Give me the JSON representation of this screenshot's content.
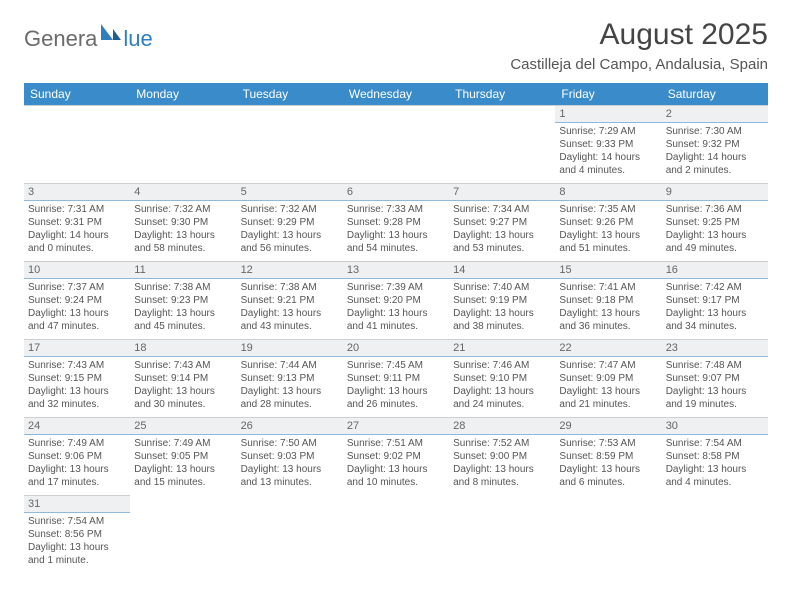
{
  "logo": {
    "text_left": "Genera",
    "text_right": "lue",
    "mark_color": "#2f7ec0",
    "gray_color": "#6b6b6b"
  },
  "header": {
    "month_title": "August 2025",
    "location": "Castilleja del Campo, Andalusia, Spain"
  },
  "colors": {
    "header_bg": "#3a8bc9",
    "header_text": "#ffffff",
    "daynum_bg": "#eef0f2",
    "daynum_border": "#8fb9da",
    "cell_border": "#cfcfcf"
  },
  "days_of_week": [
    "Sunday",
    "Monday",
    "Tuesday",
    "Wednesday",
    "Thursday",
    "Friday",
    "Saturday"
  ],
  "cells": [
    [
      {
        "empty": true
      },
      {
        "empty": true
      },
      {
        "empty": true
      },
      {
        "empty": true
      },
      {
        "empty": true
      },
      {
        "num": "1",
        "sunrise": "Sunrise: 7:29 AM",
        "sunset": "Sunset: 9:33 PM",
        "day1": "Daylight: 14 hours",
        "day2": "and 4 minutes."
      },
      {
        "num": "2",
        "sunrise": "Sunrise: 7:30 AM",
        "sunset": "Sunset: 9:32 PM",
        "day1": "Daylight: 14 hours",
        "day2": "and 2 minutes."
      }
    ],
    [
      {
        "num": "3",
        "sunrise": "Sunrise: 7:31 AM",
        "sunset": "Sunset: 9:31 PM",
        "day1": "Daylight: 14 hours",
        "day2": "and 0 minutes."
      },
      {
        "num": "4",
        "sunrise": "Sunrise: 7:32 AM",
        "sunset": "Sunset: 9:30 PM",
        "day1": "Daylight: 13 hours",
        "day2": "and 58 minutes."
      },
      {
        "num": "5",
        "sunrise": "Sunrise: 7:32 AM",
        "sunset": "Sunset: 9:29 PM",
        "day1": "Daylight: 13 hours",
        "day2": "and 56 minutes."
      },
      {
        "num": "6",
        "sunrise": "Sunrise: 7:33 AM",
        "sunset": "Sunset: 9:28 PM",
        "day1": "Daylight: 13 hours",
        "day2": "and 54 minutes."
      },
      {
        "num": "7",
        "sunrise": "Sunrise: 7:34 AM",
        "sunset": "Sunset: 9:27 PM",
        "day1": "Daylight: 13 hours",
        "day2": "and 53 minutes."
      },
      {
        "num": "8",
        "sunrise": "Sunrise: 7:35 AM",
        "sunset": "Sunset: 9:26 PM",
        "day1": "Daylight: 13 hours",
        "day2": "and 51 minutes."
      },
      {
        "num": "9",
        "sunrise": "Sunrise: 7:36 AM",
        "sunset": "Sunset: 9:25 PM",
        "day1": "Daylight: 13 hours",
        "day2": "and 49 minutes."
      }
    ],
    [
      {
        "num": "10",
        "sunrise": "Sunrise: 7:37 AM",
        "sunset": "Sunset: 9:24 PM",
        "day1": "Daylight: 13 hours",
        "day2": "and 47 minutes."
      },
      {
        "num": "11",
        "sunrise": "Sunrise: 7:38 AM",
        "sunset": "Sunset: 9:23 PM",
        "day1": "Daylight: 13 hours",
        "day2": "and 45 minutes."
      },
      {
        "num": "12",
        "sunrise": "Sunrise: 7:38 AM",
        "sunset": "Sunset: 9:21 PM",
        "day1": "Daylight: 13 hours",
        "day2": "and 43 minutes."
      },
      {
        "num": "13",
        "sunrise": "Sunrise: 7:39 AM",
        "sunset": "Sunset: 9:20 PM",
        "day1": "Daylight: 13 hours",
        "day2": "and 41 minutes."
      },
      {
        "num": "14",
        "sunrise": "Sunrise: 7:40 AM",
        "sunset": "Sunset: 9:19 PM",
        "day1": "Daylight: 13 hours",
        "day2": "and 38 minutes."
      },
      {
        "num": "15",
        "sunrise": "Sunrise: 7:41 AM",
        "sunset": "Sunset: 9:18 PM",
        "day1": "Daylight: 13 hours",
        "day2": "and 36 minutes."
      },
      {
        "num": "16",
        "sunrise": "Sunrise: 7:42 AM",
        "sunset": "Sunset: 9:17 PM",
        "day1": "Daylight: 13 hours",
        "day2": "and 34 minutes."
      }
    ],
    [
      {
        "num": "17",
        "sunrise": "Sunrise: 7:43 AM",
        "sunset": "Sunset: 9:15 PM",
        "day1": "Daylight: 13 hours",
        "day2": "and 32 minutes."
      },
      {
        "num": "18",
        "sunrise": "Sunrise: 7:43 AM",
        "sunset": "Sunset: 9:14 PM",
        "day1": "Daylight: 13 hours",
        "day2": "and 30 minutes."
      },
      {
        "num": "19",
        "sunrise": "Sunrise: 7:44 AM",
        "sunset": "Sunset: 9:13 PM",
        "day1": "Daylight: 13 hours",
        "day2": "and 28 minutes."
      },
      {
        "num": "20",
        "sunrise": "Sunrise: 7:45 AM",
        "sunset": "Sunset: 9:11 PM",
        "day1": "Daylight: 13 hours",
        "day2": "and 26 minutes."
      },
      {
        "num": "21",
        "sunrise": "Sunrise: 7:46 AM",
        "sunset": "Sunset: 9:10 PM",
        "day1": "Daylight: 13 hours",
        "day2": "and 24 minutes."
      },
      {
        "num": "22",
        "sunrise": "Sunrise: 7:47 AM",
        "sunset": "Sunset: 9:09 PM",
        "day1": "Daylight: 13 hours",
        "day2": "and 21 minutes."
      },
      {
        "num": "23",
        "sunrise": "Sunrise: 7:48 AM",
        "sunset": "Sunset: 9:07 PM",
        "day1": "Daylight: 13 hours",
        "day2": "and 19 minutes."
      }
    ],
    [
      {
        "num": "24",
        "sunrise": "Sunrise: 7:49 AM",
        "sunset": "Sunset: 9:06 PM",
        "day1": "Daylight: 13 hours",
        "day2": "and 17 minutes."
      },
      {
        "num": "25",
        "sunrise": "Sunrise: 7:49 AM",
        "sunset": "Sunset: 9:05 PM",
        "day1": "Daylight: 13 hours",
        "day2": "and 15 minutes."
      },
      {
        "num": "26",
        "sunrise": "Sunrise: 7:50 AM",
        "sunset": "Sunset: 9:03 PM",
        "day1": "Daylight: 13 hours",
        "day2": "and 13 minutes."
      },
      {
        "num": "27",
        "sunrise": "Sunrise: 7:51 AM",
        "sunset": "Sunset: 9:02 PM",
        "day1": "Daylight: 13 hours",
        "day2": "and 10 minutes."
      },
      {
        "num": "28",
        "sunrise": "Sunrise: 7:52 AM",
        "sunset": "Sunset: 9:00 PM",
        "day1": "Daylight: 13 hours",
        "day2": "and 8 minutes."
      },
      {
        "num": "29",
        "sunrise": "Sunrise: 7:53 AM",
        "sunset": "Sunset: 8:59 PM",
        "day1": "Daylight: 13 hours",
        "day2": "and 6 minutes."
      },
      {
        "num": "30",
        "sunrise": "Sunrise: 7:54 AM",
        "sunset": "Sunset: 8:58 PM",
        "day1": "Daylight: 13 hours",
        "day2": "and 4 minutes."
      }
    ],
    [
      {
        "num": "31",
        "sunrise": "Sunrise: 7:54 AM",
        "sunset": "Sunset: 8:56 PM",
        "day1": "Daylight: 13 hours",
        "day2": "and 1 minute."
      },
      {
        "empty": true
      },
      {
        "empty": true
      },
      {
        "empty": true
      },
      {
        "empty": true
      },
      {
        "empty": true
      },
      {
        "empty": true
      }
    ]
  ]
}
